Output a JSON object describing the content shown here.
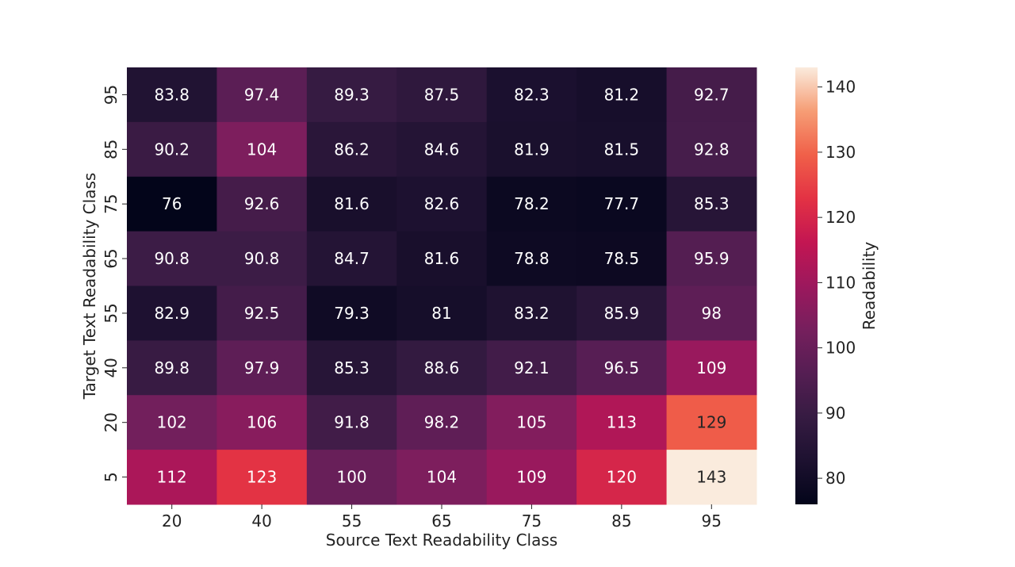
{
  "chart_data": {
    "type": "heatmap",
    "title": "",
    "xlabel": "Source Text Readability Class",
    "ylabel": "Target Text Readability Class",
    "x_categories": [
      "20",
      "40",
      "55",
      "65",
      "75",
      "85",
      "95"
    ],
    "y_categories": [
      "95",
      "85",
      "75",
      "65",
      "55",
      "40",
      "20",
      "5"
    ],
    "values": [
      [
        83.8,
        97.4,
        89.3,
        87.5,
        82.3,
        81.2,
        92.7
      ],
      [
        90.2,
        104,
        86.2,
        84.6,
        81.9,
        81.5,
        92.8
      ],
      [
        76,
        92.6,
        81.6,
        82.6,
        78.2,
        77.7,
        85.3
      ],
      [
        90.8,
        90.8,
        84.7,
        81.6,
        78.8,
        78.5,
        95.9
      ],
      [
        82.9,
        92.5,
        79.3,
        81,
        83.2,
        85.9,
        98
      ],
      [
        89.8,
        97.9,
        85.3,
        88.6,
        92.1,
        96.5,
        109
      ],
      [
        102,
        106,
        91.8,
        98.2,
        105,
        113,
        129
      ],
      [
        112,
        123,
        100,
        104,
        109,
        120,
        143
      ]
    ],
    "value_range": [
      76,
      143
    ],
    "colorbar": {
      "label": "Readability",
      "ticks": [
        80,
        90,
        100,
        110,
        120,
        130,
        140
      ]
    },
    "colormap": "rocket"
  }
}
